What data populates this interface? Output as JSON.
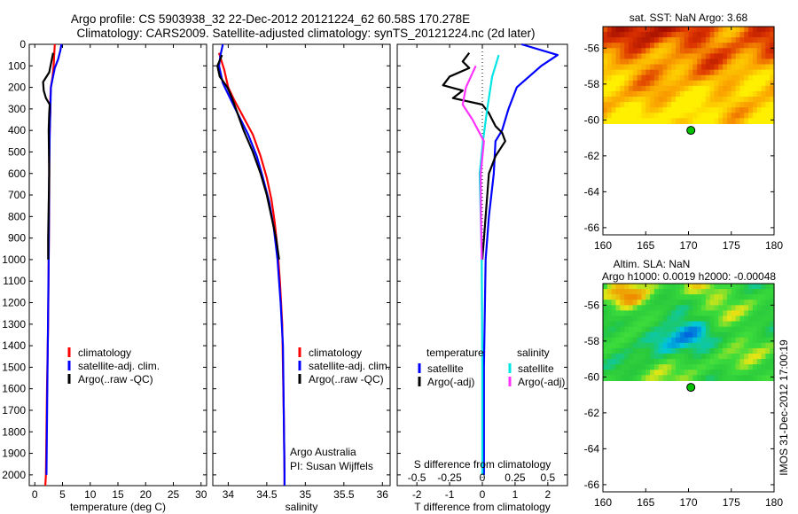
{
  "header": {
    "line1": "Argo profile: CS 5903938_32 22-Dec-2012 20121224_62 60.58S 170.278E",
    "line2": "Climatology: CARS2009. Satellite-adjusted climatology: synTS_20121224.nc (2d later)"
  },
  "side_stamp": "IMOS 31-Dec-2012 17:00:19",
  "colors": {
    "climatology": "#ff0000",
    "satellite": "#0000ff",
    "argo": "#000000",
    "sal_satellite": "#00e5e5",
    "sal_argo": "#ff33ff",
    "float_marker": "#00c000"
  },
  "chart_data": [
    {
      "id": "temperature",
      "type": "line",
      "xlabel": "temperature (deg C)",
      "ylabel": "",
      "xlim": [
        -1,
        31
      ],
      "ylim": [
        2050,
        0
      ],
      "xticks": [
        0,
        5,
        10,
        15,
        20,
        25,
        30
      ],
      "yticks": [
        0,
        100,
        200,
        300,
        400,
        500,
        600,
        700,
        800,
        900,
        1000,
        1100,
        1200,
        1300,
        1400,
        1500,
        1600,
        1700,
        1800,
        1900,
        2000
      ],
      "legend": {
        "position": "lower-middle",
        "entries": [
          "climatology",
          "satellite-adj. clim.",
          "Argo(..raw -QC)"
        ]
      },
      "series": [
        {
          "name": "climatology",
          "color": "#ff0000",
          "points": [
            [
              3.6,
              0
            ],
            [
              3.5,
              50
            ],
            [
              3.4,
              100
            ],
            [
              3.2,
              150
            ],
            [
              2.9,
              200
            ],
            [
              2.8,
              250
            ],
            [
              2.8,
              300
            ],
            [
              2.7,
              400
            ],
            [
              2.6,
              500
            ],
            [
              2.6,
              700
            ],
            [
              2.5,
              1000
            ],
            [
              2.4,
              1300
            ],
            [
              2.2,
              1600
            ],
            [
              2.1,
              1800
            ],
            [
              2.0,
              2000
            ],
            [
              1.9,
              2050
            ]
          ]
        },
        {
          "name": "satellite-adj. clim.",
          "color": "#0000ff",
          "points": [
            [
              4.8,
              0
            ],
            [
              4.6,
              30
            ],
            [
              4.2,
              70
            ],
            [
              3.6,
              110
            ],
            [
              3.2,
              160
            ],
            [
              2.9,
              200
            ],
            [
              2.8,
              300
            ],
            [
              2.7,
              400
            ],
            [
              2.6,
              600
            ],
            [
              2.5,
              1000
            ],
            [
              2.3,
              1500
            ],
            [
              2.1,
              2000
            ]
          ]
        },
        {
          "name": "Argo(..raw -QC)",
          "color": "#000000",
          "points": [
            [
              3.3,
              40
            ],
            [
              3.0,
              80
            ],
            [
              2.6,
              130
            ],
            [
              1.5,
              175
            ],
            [
              1.6,
              215
            ],
            [
              2.0,
              250
            ],
            [
              2.7,
              280
            ],
            [
              2.6,
              320
            ],
            [
              2.5,
              400
            ],
            [
              2.6,
              600
            ],
            [
              2.4,
              900
            ],
            [
              2.4,
              1000
            ]
          ]
        }
      ]
    },
    {
      "id": "salinity",
      "type": "line",
      "xlabel": "salinity",
      "ylabel": "",
      "xlim": [
        33.8,
        36.1
      ],
      "ylim": [
        2050,
        0
      ],
      "xticks": [
        34,
        34.5,
        35,
        35.5,
        36
      ],
      "legend": {
        "position": "lower-middle",
        "entries": [
          "climatology",
          "satellite-adj. clim.",
          "Argo(..raw -QC)"
        ]
      },
      "annotations": [
        "Argo Australia",
        "PI: Susan Wijffels"
      ],
      "series": [
        {
          "name": "climatology",
          "color": "#ff0000",
          "points": [
            [
              33.88,
              40
            ],
            [
              33.95,
              120
            ],
            [
              34.0,
              200
            ],
            [
              34.08,
              260
            ],
            [
              34.2,
              340
            ],
            [
              34.32,
              420
            ],
            [
              34.42,
              520
            ],
            [
              34.5,
              620
            ],
            [
              34.56,
              720
            ],
            [
              34.6,
              820
            ],
            [
              34.64,
              950
            ],
            [
              34.67,
              1100
            ],
            [
              34.7,
              1300
            ],
            [
              34.71,
              1500
            ],
            [
              34.72,
              1700
            ],
            [
              34.73,
              2000
            ],
            [
              34.73,
              2050
            ]
          ]
        },
        {
          "name": "satellite-adj. clim.",
          "color": "#0000ff",
          "points": [
            [
              33.93,
              0
            ],
            [
              33.9,
              50
            ],
            [
              33.88,
              100
            ],
            [
              33.93,
              180
            ],
            [
              34.01,
              240
            ],
            [
              34.12,
              320
            ],
            [
              34.26,
              420
            ],
            [
              34.37,
              520
            ],
            [
              34.45,
              620
            ],
            [
              34.53,
              730
            ],
            [
              34.59,
              850
            ],
            [
              34.64,
              1000
            ],
            [
              34.68,
              1200
            ],
            [
              34.71,
              1400
            ],
            [
              34.72,
              1700
            ],
            [
              34.73,
              2000
            ],
            [
              34.73,
              2050
            ]
          ]
        },
        {
          "name": "Argo(..raw -QC)",
          "color": "#000000",
          "points": [
            [
              33.92,
              50
            ],
            [
              33.86,
              100
            ],
            [
              33.89,
              150
            ],
            [
              33.99,
              200
            ],
            [
              34.05,
              250
            ],
            [
              34.1,
              300
            ],
            [
              34.2,
              400
            ],
            [
              34.32,
              500
            ],
            [
              34.42,
              600
            ],
            [
              34.5,
              700
            ],
            [
              34.56,
              800
            ],
            [
              34.62,
              900
            ],
            [
              34.66,
              1000
            ]
          ]
        }
      ]
    },
    {
      "id": "difference",
      "type": "line",
      "xlabel": "T difference from climatology",
      "xlabel_top": "S difference from climatology",
      "xlim": [
        -2.6,
        2.6
      ],
      "ylim": [
        2050,
        0
      ],
      "xticks": [
        -2,
        -1,
        0,
        1,
        2
      ],
      "xticks_top": [
        "-0.5",
        "-0.25",
        "0",
        "0.25",
        "0.5"
      ],
      "legend": {
        "position": "lower-middle",
        "temperature_title": "temperature",
        "salinity_title": "salinity",
        "entries": [
          "satellite",
          "Argo(-adj)",
          "satellite",
          "Argo(-adj)"
        ]
      },
      "series": [
        {
          "name": "satellite",
          "group": "temperature",
          "color": "#0000ff",
          "points": [
            [
              1.2,
              0
            ],
            [
              2.3,
              50
            ],
            [
              1.8,
              100
            ],
            [
              1.05,
              200
            ],
            [
              0.8,
              300
            ],
            [
              0.6,
              400
            ],
            [
              0.4,
              450
            ],
            [
              0.35,
              600
            ],
            [
              0.2,
              800
            ],
            [
              0.1,
              1000
            ],
            [
              0.05,
              1500
            ],
            [
              0.05,
              2000
            ]
          ]
        },
        {
          "name": "Argo(-adj)",
          "group": "temperature",
          "color": "#000000",
          "points": [
            [
              -0.4,
              40
            ],
            [
              -0.6,
              80
            ],
            [
              -0.4,
              110
            ],
            [
              -1.0,
              150
            ],
            [
              -1.2,
              190
            ],
            [
              -0.6,
              215
            ],
            [
              -0.9,
              250
            ],
            [
              0.0,
              280
            ],
            [
              0.2,
              320
            ],
            [
              0.4,
              380
            ],
            [
              0.6,
              410
            ],
            [
              0.7,
              450
            ],
            [
              0.4,
              520
            ],
            [
              0.2,
              600
            ],
            [
              0.1,
              800
            ],
            [
              0.0,
              1000
            ]
          ]
        },
        {
          "name": "satellite",
          "group": "salinity",
          "color": "#00e5e5",
          "points": [
            [
              0.5,
              50
            ],
            [
              0.3,
              150
            ],
            [
              0.15,
              300
            ],
            [
              0.02,
              450
            ],
            [
              -0.08,
              600
            ],
            [
              -0.05,
              800
            ],
            [
              -0.02,
              1000
            ],
            [
              0.0,
              1500
            ],
            [
              0.0,
              2000
            ]
          ]
        },
        {
          "name": "Argo(-adj)",
          "group": "salinity",
          "color": "#ff33ff",
          "points": [
            [
              -0.2,
              100
            ],
            [
              -0.5,
              200
            ],
            [
              -0.6,
              280
            ],
            [
              -0.3,
              350
            ],
            [
              0.05,
              450
            ],
            [
              -0.05,
              600
            ],
            [
              -0.04,
              800
            ],
            [
              -0.02,
              1000
            ]
          ]
        }
      ]
    },
    {
      "id": "sst-map",
      "type": "heatmap",
      "title": "sat. SST: NaN Argo: 3.68",
      "xlim": [
        160,
        180
      ],
      "ylim": [
        -66.4,
        -54.8
      ],
      "xticks": [
        160,
        165,
        170,
        175,
        180
      ],
      "yticks": [
        -56,
        -58,
        -60,
        -62,
        -64,
        -66
      ],
      "data_lat_range": [
        -54.8,
        -60.2
      ],
      "float": [
        170.278,
        -60.58
      ]
    },
    {
      "id": "sla-map",
      "type": "heatmap",
      "title": "Altim. SLA: NaN",
      "subtitle": "Argo h1000: 0.0019 h2000: -0.00048",
      "xlim": [
        160,
        180
      ],
      "ylim": [
        -66.4,
        -54.8
      ],
      "xticks": [
        160,
        165,
        170,
        175,
        180
      ],
      "yticks": [
        -56,
        -58,
        -60,
        -62,
        -64,
        -66
      ],
      "data_lat_range": [
        -54.8,
        -60.2
      ],
      "float": [
        170.278,
        -60.58
      ]
    }
  ]
}
